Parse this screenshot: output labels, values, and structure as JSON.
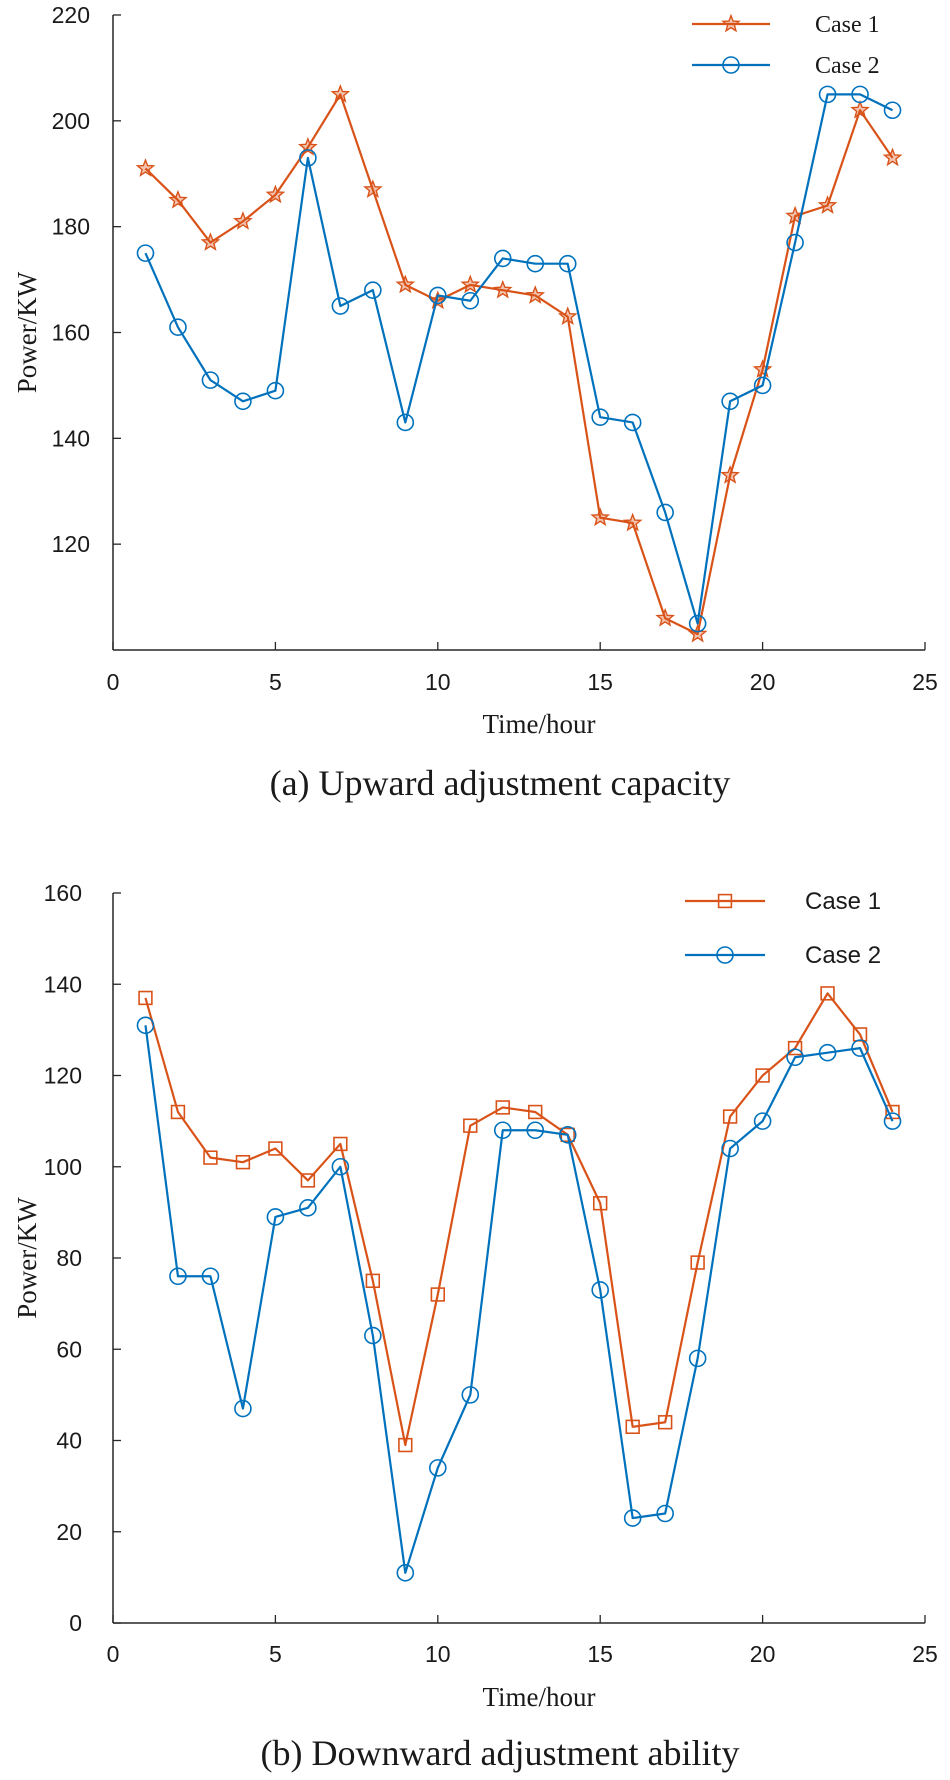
{
  "colors": {
    "case1": "#d95319",
    "case2": "#0072bd",
    "axis": "#262626"
  },
  "chart_data": [
    {
      "type": "line",
      "caption": "(a) Upward adjustment capacity",
      "xlabel": "Time/hour",
      "ylabel": "Power/KW",
      "xlim": [
        0,
        25
      ],
      "ylim": [
        100,
        220
      ],
      "xticks": [
        0,
        5,
        10,
        15,
        20,
        25
      ],
      "yticks": [
        120,
        140,
        160,
        180,
        200,
        220
      ],
      "legend_position": "top-right",
      "x": [
        1,
        2,
        3,
        4,
        5,
        6,
        7,
        8,
        9,
        10,
        11,
        12,
        13,
        14,
        15,
        16,
        17,
        18,
        19,
        20,
        21,
        22,
        23,
        24
      ],
      "series": [
        {
          "name": "Case 1",
          "marker": "star",
          "color": "#d95319",
          "values": [
            191,
            185,
            177,
            181,
            186,
            195,
            205,
            187,
            169,
            166,
            169,
            168,
            167,
            163,
            125,
            124,
            106,
            103,
            133,
            153,
            182,
            184,
            202,
            193
          ]
        },
        {
          "name": "Case 2",
          "marker": "circle",
          "color": "#0072bd",
          "values": [
            175,
            161,
            151,
            147,
            149,
            193,
            165,
            168,
            143,
            167,
            166,
            174,
            173,
            173,
            144,
            143,
            126,
            105,
            147,
            150,
            177,
            205,
            205,
            202
          ]
        }
      ]
    },
    {
      "type": "line",
      "caption": "(b) Downward adjustment ability",
      "xlabel": "Time/hour",
      "ylabel": "Power/KW",
      "xlim": [
        0,
        25
      ],
      "ylim": [
        0,
        160
      ],
      "xticks": [
        0,
        5,
        10,
        15,
        20,
        25
      ],
      "yticks": [
        0,
        20,
        40,
        60,
        80,
        100,
        120,
        140,
        160
      ],
      "legend_position": "top-right",
      "x": [
        1,
        2,
        3,
        4,
        5,
        6,
        7,
        8,
        9,
        10,
        11,
        12,
        13,
        14,
        15,
        16,
        17,
        18,
        19,
        20,
        21,
        22,
        23,
        24
      ],
      "series": [
        {
          "name": "Case 1",
          "marker": "square",
          "color": "#d95319",
          "values": [
            137,
            112,
            102,
            101,
            104,
            97,
            105,
            75,
            39,
            72,
            109,
            113,
            112,
            107,
            92,
            43,
            44,
            79,
            111,
            120,
            126,
            138,
            129,
            112
          ]
        },
        {
          "name": "Case 2",
          "marker": "circle",
          "color": "#0072bd",
          "values": [
            131,
            76,
            76,
            47,
            89,
            91,
            100,
            63,
            11,
            34,
            50,
            108,
            108,
            107,
            73,
            23,
            24,
            58,
            104,
            110,
            124,
            125,
            126,
            110
          ]
        }
      ]
    }
  ]
}
